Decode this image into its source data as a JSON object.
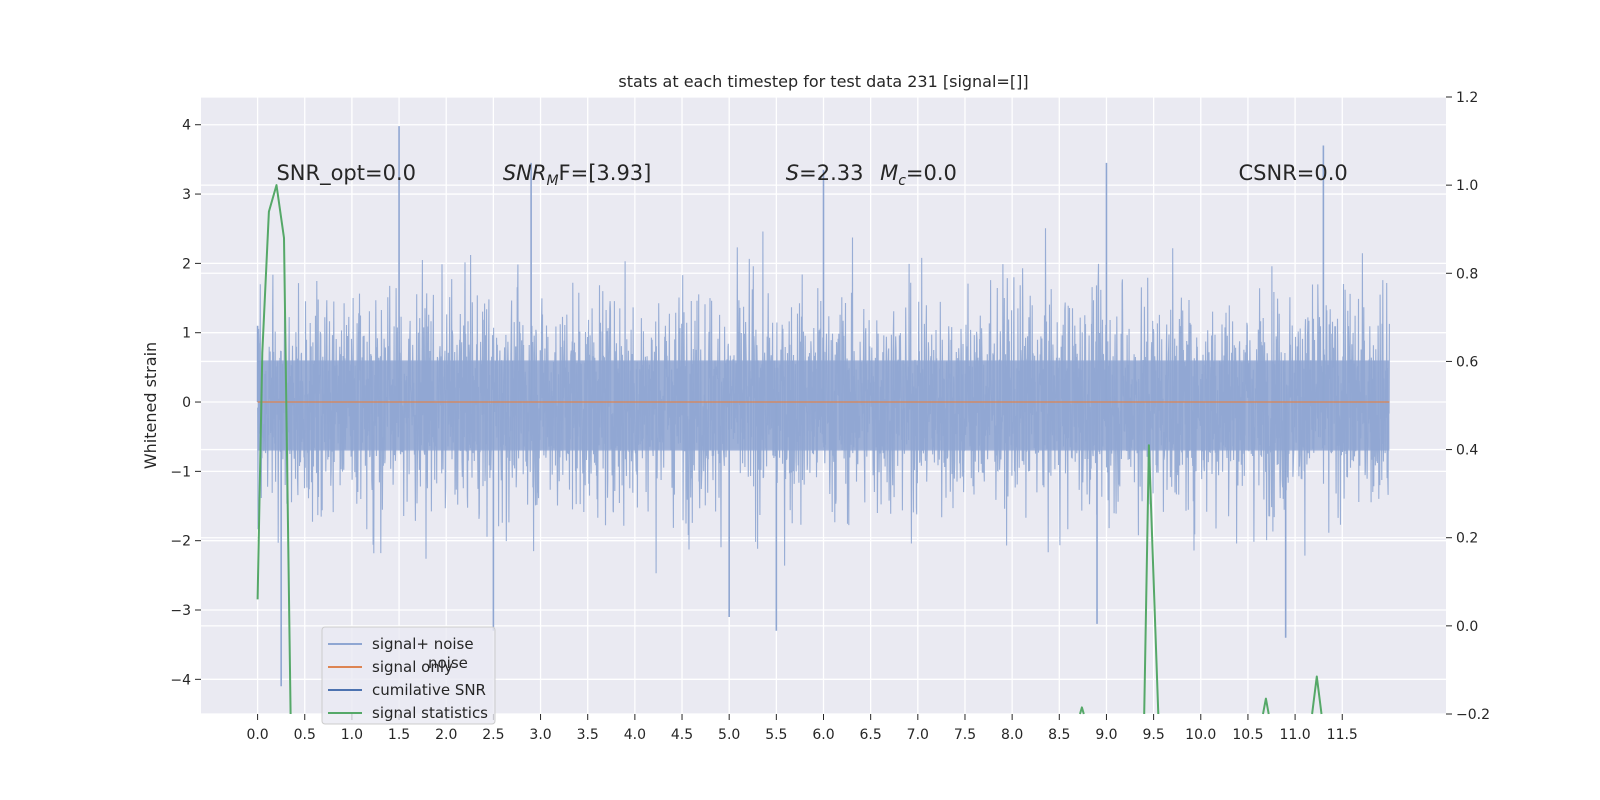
{
  "chart_data": {
    "type": "line",
    "title": "stats at each timestep for test data 231 [signal=[]]",
    "ylabel": "Whitened strain",
    "xlabel": "",
    "xlim": [
      -0.6,
      12.6
    ],
    "ylim": [
      -4.5,
      4.4
    ],
    "ylim_right": [
      -0.2,
      1.2
    ],
    "x_ticks": [
      "0.0",
      "0.5",
      "1.0",
      "1.5",
      "2.0",
      "2.5",
      "3.0",
      "3.5",
      "4.0",
      "4.5",
      "5.0",
      "5.5",
      "6.0",
      "6.5",
      "7.0",
      "7.5",
      "8.0",
      "8.5",
      "9.0",
      "9.5",
      "10.0",
      "10.5",
      "11.0",
      "11.5"
    ],
    "x_tick_values": [
      0.0,
      0.5,
      1.0,
      1.5,
      2.0,
      2.5,
      3.0,
      3.5,
      4.0,
      4.5,
      5.0,
      5.5,
      6.0,
      6.5,
      7.0,
      7.5,
      8.0,
      8.5,
      9.0,
      9.5,
      10.0,
      10.5,
      11.0,
      11.5
    ],
    "y_ticks": [
      "4",
      "3",
      "2",
      "1",
      "0",
      "−1",
      "−2",
      "−3",
      "−4"
    ],
    "y_tick_values": [
      4,
      3,
      2,
      1,
      0,
      -1,
      -2,
      -3,
      -4
    ],
    "y2_ticks": [
      "1.2",
      "1.0",
      "0.8",
      "0.6",
      "0.4",
      "0.2",
      "0.0",
      "−0.2"
    ],
    "y2_tick_values": [
      1.2,
      1.0,
      0.8,
      0.6,
      0.4,
      0.2,
      0.0,
      -0.2
    ],
    "grid": true,
    "legend_position": "lower-left",
    "noise": {
      "x_range": [
        0.0,
        12.0
      ],
      "band_1sigma": [
        -0.7,
        0.6
      ],
      "typical_envelope": [
        -2.0,
        2.0
      ],
      "peak_max": 3.98,
      "peak_min": -4.1
    },
    "series": [
      {
        "name": "signal+ noise",
        "axis": "left",
        "color": "#8fa6d2",
        "kind": "noise",
        "x": [
          0.0,
          0.25,
          1.5,
          2.5,
          2.9,
          5.0,
          5.5,
          6.0,
          8.9,
          9.0,
          10.9,
          11.3
        ],
        "values": [
          1.1,
          -4.1,
          3.98,
          -3.3,
          3.45,
          -3.1,
          -3.3,
          3.35,
          -3.2,
          3.45,
          -3.4,
          3.7
        ]
      },
      {
        "name": "signal only",
        "axis": "left",
        "color": "#dd8452",
        "x": [
          0.0,
          12.0
        ],
        "values": [
          0.0,
          0.0
        ]
      },
      {
        "name": "cumilative SNR",
        "axis": "right",
        "color": "#4c72b0",
        "x": [],
        "values": []
      },
      {
        "name": "signal statistics",
        "axis": "right",
        "color": "#55a868",
        "segments": [
          {
            "x": [
              0.0,
              0.05,
              0.12,
              0.2,
              0.28,
              0.35
            ],
            "values": [
              0.06,
              0.62,
              0.94,
              1.0,
              0.88,
              -0.2
            ]
          },
          {
            "x": [
              8.72,
              8.74,
              8.76
            ],
            "values": [
              -0.2,
              -0.185,
              -0.2
            ]
          },
          {
            "x": [
              9.4,
              9.45,
              9.55
            ],
            "values": [
              -0.2,
              0.41,
              -0.2
            ]
          },
          {
            "x": [
              10.66,
              10.69,
              10.72
            ],
            "values": [
              -0.2,
              -0.165,
              -0.2
            ]
          },
          {
            "x": [
              11.18,
              11.23,
              11.28
            ],
            "values": [
              -0.2,
              -0.115,
              -0.2
            ]
          }
        ]
      }
    ],
    "annotations": [
      {
        "text": "SNR_opt=0.0",
        "x": 0.2,
        "y": 3.2
      },
      {
        "text": "SNR",
        "sub": "M",
        "tail": "F=[3.93]",
        "italic": true,
        "x": 2.6,
        "y": 3.2
      },
      {
        "text": "S",
        "tail": "=2.33",
        "italic": true,
        "x": 5.6,
        "y": 3.2
      },
      {
        "text": "M",
        "sub": "c",
        "tail": "=0.0",
        "italic": true,
        "x": 6.6,
        "y": 3.2
      },
      {
        "text": "CSNR=0.0",
        "x": 10.4,
        "y": 3.2
      }
    ],
    "legend_ghost": "noise"
  },
  "colors": {
    "plot_background": "#eaeaf2",
    "grid": "#ffffff"
  }
}
